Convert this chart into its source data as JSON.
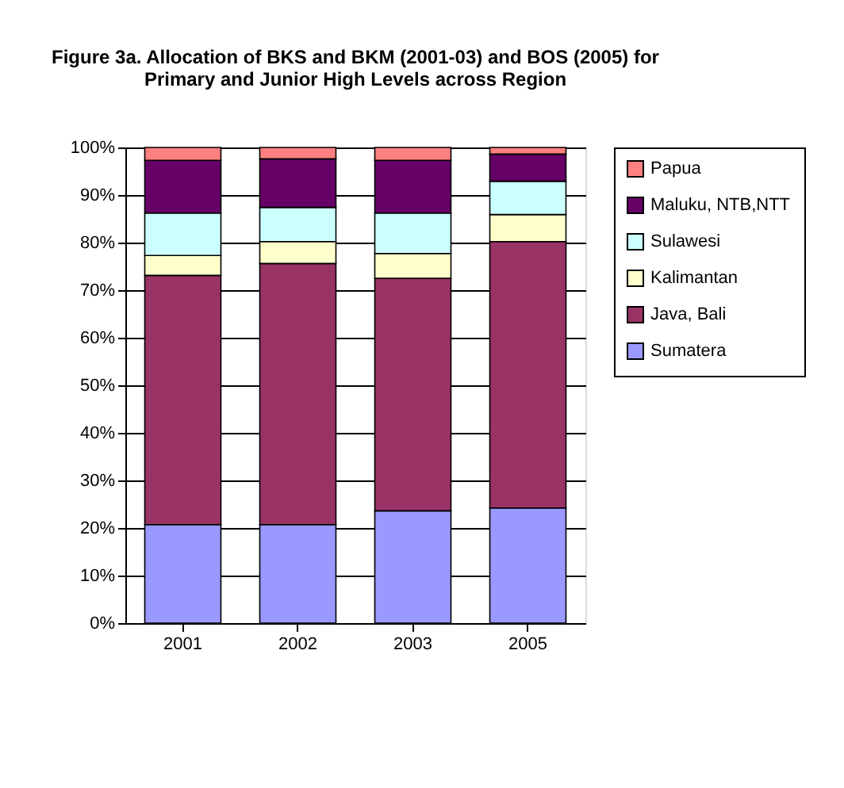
{
  "chart_data": {
    "type": "bar",
    "title": [
      "Figure 3a.  Allocation of BKS and BKM (2001-03) and BOS (2005) for",
      "Primary and Junior High Levels across Region"
    ],
    "categories": [
      "2001",
      "2002",
      "2003",
      "2005"
    ],
    "stacked": true,
    "series": [
      {
        "name": "Sumatera",
        "color": "#9999ff",
        "values": [
          20.7,
          20.7,
          23.6,
          24.2
        ]
      },
      {
        "name": "Java, Bali",
        "color": "#993366",
        "values": [
          52.4,
          54.9,
          48.9,
          56.0
        ]
      },
      {
        "name": "Kalimantan",
        "color": "#ffffcc",
        "values": [
          4.2,
          4.6,
          5.2,
          5.7
        ]
      },
      {
        "name": "Sulawesi",
        "color": "#ccffff",
        "values": [
          8.9,
          7.2,
          8.5,
          7.0
        ]
      },
      {
        "name": "Maluku, NTB,NTT",
        "color": "#660066",
        "values": [
          11.1,
          10.2,
          11.1,
          5.7
        ]
      },
      {
        "name": "Papua",
        "color": "#ff8080",
        "values": [
          2.7,
          2.4,
          2.7,
          1.4
        ]
      }
    ],
    "ylim": [
      0,
      100
    ],
    "yticks": [
      {
        "value": 0,
        "label": "0%"
      },
      {
        "value": 10,
        "label": "10%"
      },
      {
        "value": 20,
        "label": "20%"
      },
      {
        "value": 30,
        "label": "30%"
      },
      {
        "value": 40,
        "label": "40%"
      },
      {
        "value": 50,
        "label": "50%"
      },
      {
        "value": 60,
        "label": "60%"
      },
      {
        "value": 70,
        "label": "70%"
      },
      {
        "value": 80,
        "label": "80%"
      },
      {
        "value": 90,
        "label": "90%"
      },
      {
        "value": 100,
        "label": "100%"
      }
    ],
    "grid": "y",
    "legend": "right"
  }
}
